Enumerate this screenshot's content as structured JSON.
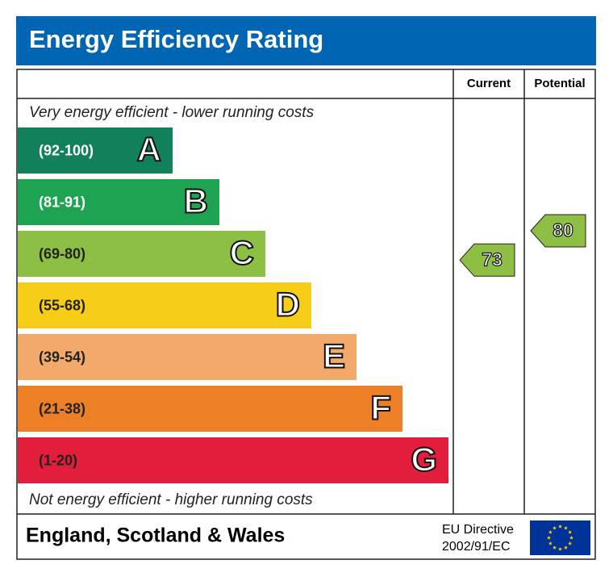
{
  "title": "Energy Efficiency Rating",
  "columns": {
    "current": "Current",
    "potential": "Potential"
  },
  "top_note": "Very energy efficient - lower running costs",
  "bottom_note": "Not energy efficient - higher running costs",
  "bands": [
    {
      "range": "(92-100)",
      "letter": "A",
      "color": "#12805a",
      "text_color": "#ffffff"
    },
    {
      "range": "(81-91)",
      "letter": "B",
      "color": "#1ea353",
      "text_color": "#ffffff"
    },
    {
      "range": "(69-80)",
      "letter": "C",
      "color": "#8dbf45",
      "text_color": "#222222"
    },
    {
      "range": "(55-68)",
      "letter": "D",
      "color": "#f6cd17",
      "text_color": "#222222"
    },
    {
      "range": "(39-54)",
      "letter": "E",
      "color": "#f2a96a",
      "text_color": "#222222"
    },
    {
      "range": "(21-38)",
      "letter": "F",
      "color": "#ed8027",
      "text_color": "#222222"
    },
    {
      "range": "(1-20)",
      "letter": "G",
      "color": "#e21e3c",
      "text_color": "#222222"
    }
  ],
  "current": {
    "value": "73"
  },
  "potential": {
    "value": "80"
  },
  "footer": {
    "region": "England, Scotland & Wales",
    "directive": [
      "EU Directive",
      "2002/91/EC"
    ]
  }
}
